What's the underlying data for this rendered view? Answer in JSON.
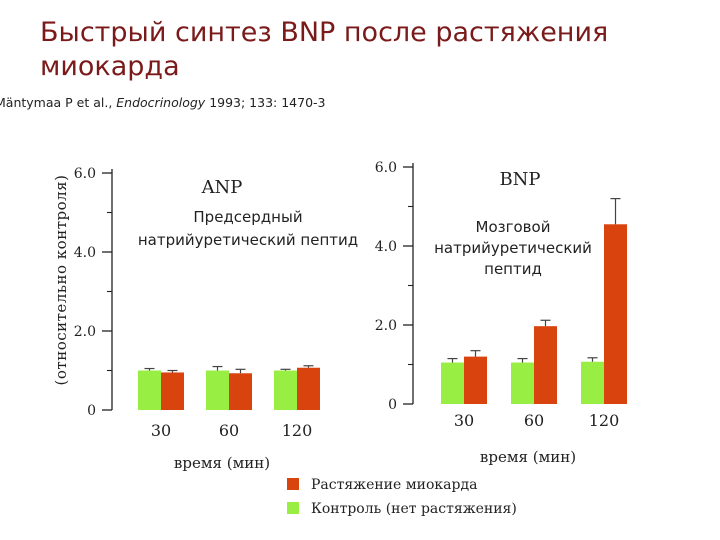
{
  "title": "Быстрый синтез BNP после растяжения миокарда",
  "citation": {
    "authors": "Mäntymaa P et al.,",
    "journal": "Endocrinology",
    "details": "1993; 133: 1470-3"
  },
  "ylabel": "(относительно контроля)",
  "colors": {
    "stretch": "#d9440e",
    "control": "#99ee44",
    "axis": "#222222",
    "title": "#7a1a1a"
  },
  "chart_data": [
    {
      "type": "bar",
      "title": "ANP",
      "subtitle": "Предсердный натрийуретический пептид",
      "xlabel": "время (мин)",
      "ylabel": "(относительно контроля)",
      "ylim": [
        0,
        6.0
      ],
      "yticks": [
        "0",
        "2.0",
        "4.0",
        "6.0"
      ],
      "categories": [
        "30",
        "60",
        "120"
      ],
      "series": [
        {
          "name": "Контроль (нет растяжения)",
          "values": [
            1.0,
            1.0,
            1.0
          ],
          "errors": [
            0.05,
            0.1,
            0.03
          ]
        },
        {
          "name": "Растяжение миокарда",
          "values": [
            0.95,
            0.93,
            1.07
          ],
          "errors": [
            0.05,
            0.1,
            0.05
          ]
        }
      ]
    },
    {
      "type": "bar",
      "title": "BNP",
      "subtitle": "Мозговой натрийуретический пептид",
      "xlabel": "время (мин)",
      "ylim": [
        0,
        6.0
      ],
      "yticks": [
        "0",
        "2.0",
        "4.0",
        "6.0"
      ],
      "categories": [
        "30",
        "60",
        "120"
      ],
      "series": [
        {
          "name": "Контроль (нет растяжения)",
          "values": [
            1.05,
            1.05,
            1.07
          ],
          "errors": [
            0.1,
            0.1,
            0.1
          ]
        },
        {
          "name": "Растяжение миокарда",
          "values": [
            1.2,
            1.97,
            4.55
          ],
          "errors": [
            0.15,
            0.15,
            0.65
          ]
        }
      ]
    }
  ],
  "legend": {
    "items": [
      {
        "label": "Растяжение миокарда",
        "color": "#d9440e"
      },
      {
        "label": "Контроль (нет растяжения)",
        "color": "#99ee44"
      }
    ]
  }
}
